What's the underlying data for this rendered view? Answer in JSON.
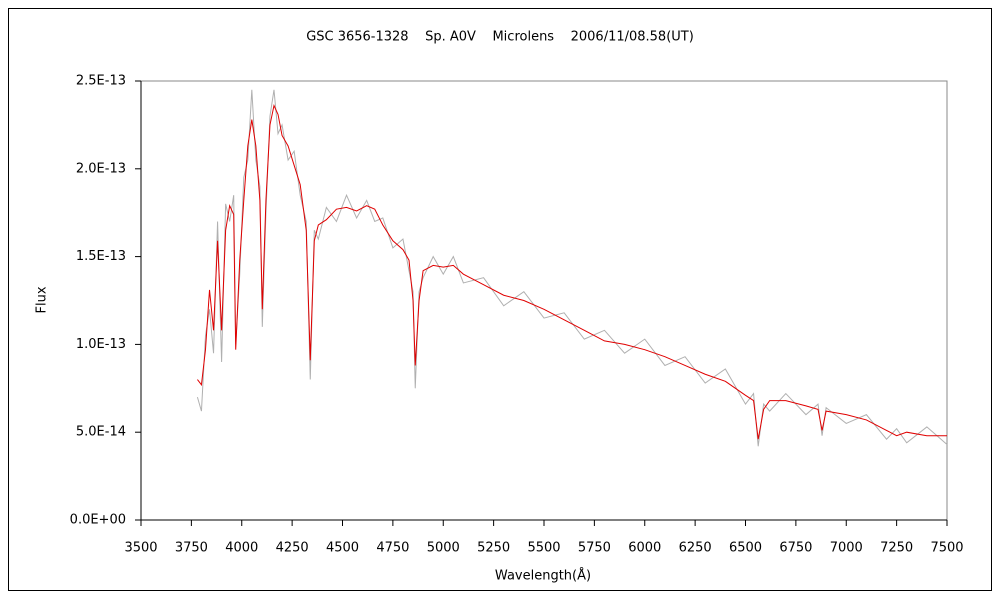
{
  "chart_data": {
    "type": "line",
    "title": "GSC 3656-1328    Sp. A0V    Microlens    2006/11/08.58(UT)",
    "x_label": "Wavelength(Å)",
    "y_label": "Flux",
    "x": [
      3780,
      3800,
      3820,
      3840,
      3860,
      3880,
      3900,
      3920,
      3940,
      3960,
      3970,
      3990,
      4010,
      4030,
      4050,
      4070,
      4090,
      4102,
      4120,
      4140,
      4160,
      4180,
      4200,
      4230,
      4260,
      4290,
      4320,
      4340,
      4360,
      4380,
      4420,
      4470,
      4520,
      4570,
      4620,
      4660,
      4700,
      4750,
      4800,
      4830,
      4850,
      4861,
      4880,
      4900,
      4950,
      5000,
      5050,
      5100,
      5200,
      5300,
      5400,
      5500,
      5600,
      5700,
      5800,
      5900,
      6000,
      6100,
      6200,
      6300,
      6400,
      6500,
      6540,
      6563,
      6590,
      6620,
      6700,
      6800,
      6860,
      6880,
      6900,
      7000,
      7100,
      7200,
      7250,
      7300,
      7400,
      7500
    ],
    "series": [
      {
        "color": "#b0b0b0",
        "values": [
          7e-14,
          6.2e-14,
          1.05e-13,
          1.2e-13,
          9.5e-14,
          1.7e-13,
          9e-14,
          1.8e-13,
          1.7e-13,
          1.85e-13,
          1e-13,
          1.4e-13,
          1.95e-13,
          2.05e-13,
          2.45e-13,
          2.05e-13,
          1.9e-13,
          1.1e-13,
          1.75e-13,
          2.3e-13,
          2.45e-13,
          2.2e-13,
          2.25e-13,
          2.05e-13,
          2.1e-13,
          1.85e-13,
          1.7e-13,
          8e-14,
          1.65e-13,
          1.6e-13,
          1.78e-13,
          1.7e-13,
          1.85e-13,
          1.72e-13,
          1.82e-13,
          1.7e-13,
          1.72e-13,
          1.55e-13,
          1.6e-13,
          1.42e-13,
          1.3e-13,
          7.5e-14,
          1.3e-13,
          1.38e-13,
          1.5e-13,
          1.4e-13,
          1.5e-13,
          1.35e-13,
          1.38e-13,
          1.22e-13,
          1.3e-13,
          1.15e-13,
          1.18e-13,
          1.03e-13,
          1.08e-13,
          9.5e-14,
          1.03e-13,
          8.8e-14,
          9.3e-14,
          7.8e-14,
          8.6e-14,
          6.6e-14,
          7.2e-14,
          4.2e-14,
          6.6e-14,
          6.2e-14,
          7.2e-14,
          6e-14,
          6.6e-14,
          4.8e-14,
          6.4e-14,
          5.5e-14,
          6e-14,
          4.6e-14,
          5.2e-14,
          4.4e-14,
          5.3e-14,
          4.3e-14
        ]
      },
      {
        "color": "#e00000",
        "values": [
          8e-14,
          7.7e-14,
          9.7e-14,
          1.31e-13,
          1.08e-13,
          1.59e-13,
          1.08e-13,
          1.65e-13,
          1.79e-13,
          1.74e-13,
          9.7e-14,
          1.48e-13,
          1.82e-13,
          2.13e-13,
          2.28e-13,
          2.13e-13,
          1.82e-13,
          1.2e-13,
          1.82e-13,
          2.25e-13,
          2.36e-13,
          2.31e-13,
          2.19e-13,
          2.13e-13,
          2.02e-13,
          1.91e-13,
          1.65e-13,
          9.1e-14,
          1.59e-13,
          1.68e-13,
          1.71e-13,
          1.77e-13,
          1.78e-13,
          1.76e-13,
          1.79e-13,
          1.77e-13,
          1.68e-13,
          1.59e-13,
          1.54e-13,
          1.48e-13,
          1.25e-13,
          8.8e-14,
          1.25e-13,
          1.42e-13,
          1.45e-13,
          1.44e-13,
          1.45e-13,
          1.4e-13,
          1.34e-13,
          1.28e-13,
          1.25e-13,
          1.2e-13,
          1.14e-13,
          1.08e-13,
          1.02e-13,
          1e-13,
          9.7e-14,
          9.3e-14,
          8.8e-14,
          8.3e-14,
          7.9e-14,
          7.1e-14,
          6.8e-14,
          4.6e-14,
          6.3e-14,
          6.8e-14,
          6.8e-14,
          6.5e-14,
          6.3e-14,
          5.1e-14,
          6.2e-14,
          6e-14,
          5.7e-14,
          5.1e-14,
          4.8e-14,
          5e-14,
          4.8e-14,
          4.8e-14
        ]
      }
    ],
    "xlim": [
      3500,
      7500
    ],
    "xticks": [
      3500,
      3750,
      4000,
      4250,
      4500,
      4750,
      5000,
      5250,
      5500,
      5750,
      6000,
      6250,
      6500,
      6750,
      7000,
      7250,
      7500
    ],
    "ylim": [
      0,
      2.5e-13
    ],
    "yticks": [
      {
        "value": 0,
        "label": "0.0E+00"
      },
      {
        "value": 5e-14,
        "label": "5.0E-14"
      },
      {
        "value": 1e-13,
        "label": "1.0E-13"
      },
      {
        "value": 1.5e-13,
        "label": "1.5E-13"
      },
      {
        "value": 2e-13,
        "label": "2.0E-13"
      },
      {
        "value": 2.5e-13,
        "label": "2.5E-13"
      }
    ],
    "grid": false
  }
}
